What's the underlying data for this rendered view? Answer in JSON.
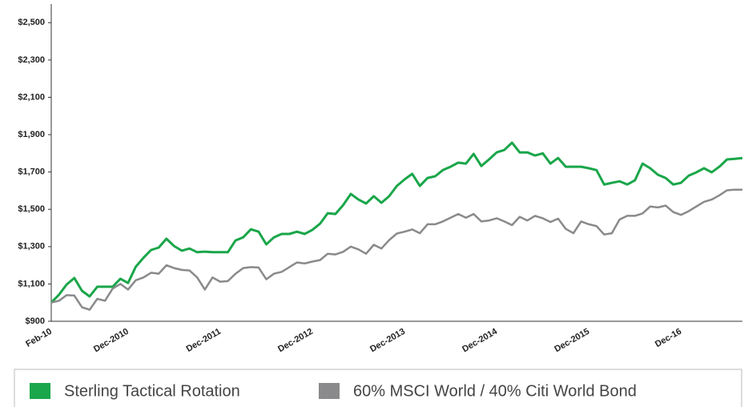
{
  "chart_data": {
    "type": "line",
    "categories": [
      "Feb-10",
      null,
      null,
      null,
      null,
      null,
      null,
      null,
      null,
      null,
      "Dec-2010",
      null,
      null,
      null,
      null,
      null,
      null,
      null,
      null,
      null,
      null,
      null,
      "Dec-2011",
      null,
      null,
      null,
      null,
      null,
      null,
      null,
      null,
      null,
      null,
      null,
      "Dec-2012",
      null,
      null,
      null,
      null,
      null,
      null,
      null,
      null,
      null,
      null,
      null,
      "Dec-2013",
      null,
      null,
      null,
      null,
      null,
      null,
      null,
      null,
      null,
      null,
      null,
      "Dec-2014",
      null,
      null,
      null,
      null,
      null,
      null,
      null,
      null,
      null,
      null,
      null,
      "Dec-2015",
      null,
      null,
      null,
      null,
      null,
      null,
      null,
      null,
      null,
      null,
      null,
      "Dec-16",
      null,
      null,
      null,
      null,
      null,
      null,
      null,
      null
    ],
    "series": [
      {
        "name": "Sterling Tactical Rotation",
        "color": "#1aa64a",
        "values": [
          1000,
          1042,
          1097,
          1132,
          1063,
          1033,
          1085,
          1085,
          1085,
          1128,
          1105,
          1192,
          1240,
          1282,
          1295,
          1342,
          1303,
          1278,
          1290,
          1270,
          1273,
          1270,
          1270,
          1270,
          1333,
          1350,
          1393,
          1380,
          1312,
          1350,
          1368,
          1368,
          1380,
          1368,
          1390,
          1423,
          1479,
          1475,
          1522,
          1582,
          1552,
          1531,
          1570,
          1535,
          1570,
          1625,
          1660,
          1690,
          1625,
          1668,
          1677,
          1710,
          1728,
          1750,
          1745,
          1797,
          1732,
          1767,
          1805,
          1818,
          1857,
          1805,
          1805,
          1788,
          1800,
          1745,
          1775,
          1728,
          1728,
          1728,
          1720,
          1710,
          1633,
          1642,
          1650,
          1633,
          1655,
          1745,
          1720,
          1685,
          1668,
          1633,
          1642,
          1680,
          1698,
          1720,
          1698,
          1728,
          1767,
          1770,
          1775
        ]
      },
      {
        "name": "60% MSCI World / 40% Citi World Bond",
        "color": "#8a8a8c",
        "values": [
          1000,
          1010,
          1040,
          1038,
          975,
          962,
          1020,
          1010,
          1075,
          1100,
          1070,
          1120,
          1135,
          1160,
          1155,
          1200,
          1185,
          1175,
          1172,
          1135,
          1070,
          1135,
          1112,
          1115,
          1155,
          1185,
          1190,
          1188,
          1125,
          1155,
          1165,
          1190,
          1215,
          1210,
          1220,
          1228,
          1262,
          1258,
          1272,
          1300,
          1285,
          1262,
          1310,
          1290,
          1335,
          1370,
          1380,
          1392,
          1372,
          1420,
          1420,
          1435,
          1455,
          1475,
          1455,
          1475,
          1435,
          1440,
          1452,
          1435,
          1415,
          1460,
          1440,
          1465,
          1452,
          1432,
          1450,
          1395,
          1372,
          1435,
          1420,
          1410,
          1365,
          1372,
          1445,
          1465,
          1465,
          1478,
          1515,
          1510,
          1520,
          1485,
          1470,
          1490,
          1515,
          1540,
          1552,
          1575,
          1602,
          1605,
          1605
        ]
      }
    ],
    "ylim": [
      900,
      2600
    ],
    "yticks": [
      {
        "value": 900,
        "label": "$900"
      },
      {
        "value": 1100,
        "label": "$1,100"
      },
      {
        "value": 1300,
        "label": "$1,300"
      },
      {
        "value": 1500,
        "label": "$1,500"
      },
      {
        "value": 1700,
        "label": "$1,700"
      },
      {
        "value": 1900,
        "label": "$1,900"
      },
      {
        "value": 2100,
        "label": "$2,100"
      },
      {
        "value": 2300,
        "label": "$2,300"
      },
      {
        "value": 2500,
        "label": "$2,500"
      }
    ],
    "grid": false,
    "legend": "bottom"
  }
}
